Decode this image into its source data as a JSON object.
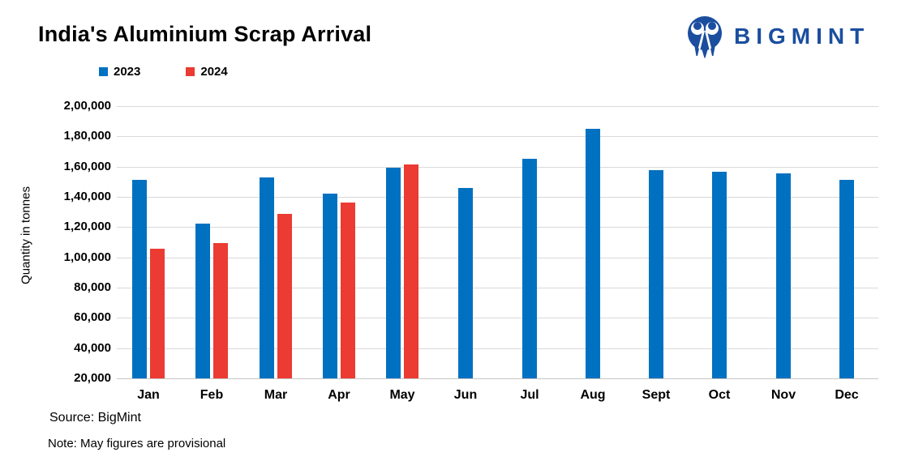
{
  "header": {
    "title": "India's Aluminium Scrap Arrival",
    "brand": "BIGMINT"
  },
  "legend": [
    {
      "label": "2023",
      "color": "#0071C1"
    },
    {
      "label": "2024",
      "color": "#EB3B32"
    }
  ],
  "footer": {
    "source": "Source: BigMint",
    "note": "Note: May figures are provisional"
  },
  "brand_color": "#1B4E9F",
  "chart_data": {
    "type": "bar",
    "title": "India's Aluminium Scrap Arrival",
    "categories": [
      "Jan",
      "Feb",
      "Mar",
      "Apr",
      "May",
      "Jun",
      "Jul",
      "Aug",
      "Sept",
      "Oct",
      "Nov",
      "Dec"
    ],
    "series": [
      {
        "name": "2023",
        "color": "#0071C1",
        "values": [
          151000,
          122500,
          153000,
          142000,
          159500,
          146000,
          165000,
          185000,
          157500,
          156500,
          155500,
          151500
        ]
      },
      {
        "name": "2024",
        "color": "#EB3B32",
        "values": [
          105500,
          109500,
          129000,
          136000,
          161500,
          null,
          null,
          null,
          null,
          null,
          null,
          null
        ]
      }
    ],
    "xlabel": "",
    "ylabel": "Quantity in tonnes",
    "ylim": [
      20000,
      200000
    ],
    "ytick_step": 20000,
    "ytick_labels": [
      "20,000",
      "40,000",
      "60,000",
      "80,000",
      "1,00,000",
      "1,20,000",
      "1,40,000",
      "1,60,000",
      "1,80,000",
      "2,00,000"
    ],
    "grid": true,
    "legend_position": "top-left"
  }
}
